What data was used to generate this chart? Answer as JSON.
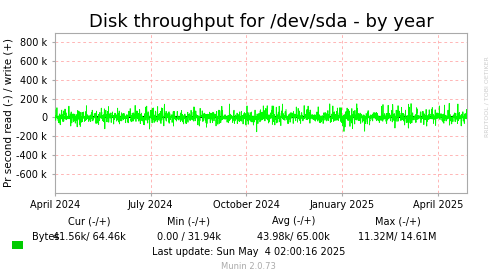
{
  "title": "Disk throughput for /dev/sda - by year",
  "ylabel": "Pr second read (-) / write (+)",
  "background_color": "#ffffff",
  "plot_bg_color": "#ffffff",
  "grid_color": "#ff9999",
  "border_color": "#aaaaaa",
  "ylim": [
    -800000,
    900000
  ],
  "yticks": [
    -600000,
    -400000,
    -200000,
    0,
    200000,
    400000,
    600000,
    800000
  ],
  "ytick_labels": [
    "-600 k",
    "-400 k",
    "-200 k",
    "0",
    "200 k",
    "400 k",
    "600 k",
    "800 k"
  ],
  "xlim_start": 1711843200,
  "xlim_end": 1746057600,
  "xtick_positions": [
    1711843200,
    1719792000,
    1727740800,
    1735689600,
    1743638400
  ],
  "xtick_labels": [
    "April 2024",
    "July 2024",
    "October 2024",
    "January 2025",
    "April 2025"
  ],
  "line_color": "#00ff00",
  "zero_line_color": "#000000",
  "legend_label": "Bytes",
  "legend_color": "#00cc00",
  "footer_text": "Last update: Sun May  4 02:00:16 2025",
  "munin_text": "Munin 2.0.73",
  "rrdtool_text": "RRDTOOL / TOBI OETIKER",
  "title_fontsize": 13,
  "axis_fontsize": 7.5,
  "tick_fontsize": 7,
  "stats_fontsize": 7
}
